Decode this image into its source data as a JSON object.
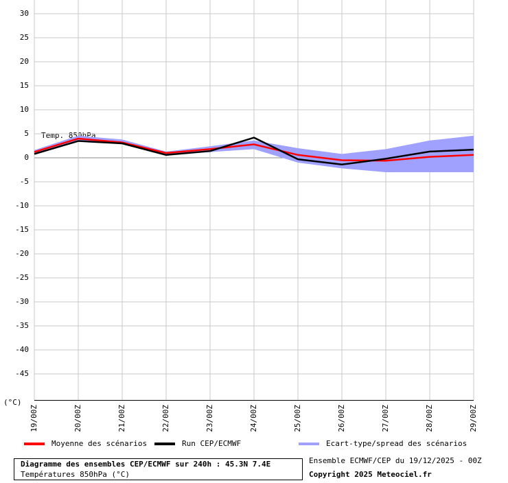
{
  "chart_data": {
    "type": "line",
    "title": "Diagramme des ensembles CEP/ECMWF sur 240h : 45.3N 7.4E",
    "subtitle": "Températures 850hPa (°C)",
    "source": "Ensemble ECMWF/CEP du 19/12/2025 - 00Z",
    "copyright": "Copyright 2025 Meteociel.fr",
    "annotation": "Temp. 850hPa",
    "y_unit": "(°C)",
    "categories": [
      "19/00Z",
      "20/00Z",
      "21/00Z",
      "22/00Z",
      "23/00Z",
      "24/00Z",
      "25/00Z",
      "26/00Z",
      "27/00Z",
      "28/00Z",
      "29/00Z"
    ],
    "series": [
      {
        "name": "Moyenne des scénarios",
        "color": "#ff0000",
        "values": [
          1.2,
          4.0,
          3.2,
          1.0,
          1.8,
          2.8,
          0.6,
          -0.5,
          -0.6,
          0.2,
          0.6
        ]
      },
      {
        "name": "Run CEP/ECMWF",
        "color": "#000000",
        "values": [
          0.8,
          3.5,
          3.0,
          0.6,
          1.4,
          4.2,
          -0.3,
          -1.4,
          -0.2,
          1.3,
          1.7
        ]
      }
    ],
    "band": {
      "name": "Ecart-type/spread des scénarios",
      "color": "#a0a0ff",
      "upper": [
        1.6,
        4.6,
        3.8,
        1.3,
        2.4,
        3.6,
        2.0,
        0.8,
        1.8,
        3.6,
        4.6
      ],
      "lower": [
        0.8,
        3.6,
        2.8,
        0.6,
        1.2,
        1.8,
        -1.0,
        -2.2,
        -3.0,
        -3.0,
        -3.0
      ]
    },
    "ylim": [
      -50.5,
      32.5
    ],
    "yticks": [
      30,
      25,
      20,
      15,
      10,
      5,
      0,
      -5,
      -10,
      -15,
      -20,
      -25,
      -30,
      -35,
      -40,
      -45
    ],
    "grid": true
  }
}
